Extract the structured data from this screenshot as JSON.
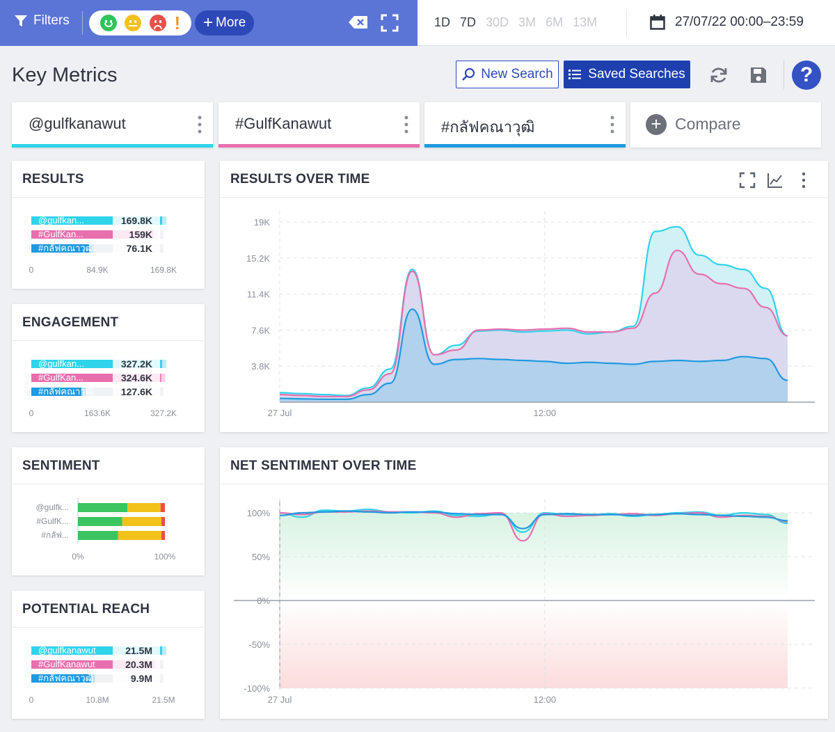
{
  "topbar": {
    "filters_label": "Filters",
    "more_label": "More",
    "excl": "!",
    "ranges": [
      "1D",
      "7D",
      "30D",
      "3M",
      "6M",
      "13M"
    ],
    "ranges_enabled": [
      true,
      true,
      false,
      false,
      false,
      false
    ],
    "date_range": "27/07/22 00:00–23:59"
  },
  "header": {
    "title": "Key Metrics",
    "new_search": "New Search",
    "saved_searches": "Saved Searches",
    "help": "?"
  },
  "queries": [
    {
      "label": "@gulfkanawut",
      "color": "#2fd3ea"
    },
    {
      "label": "#GulfKanawut",
      "color": "#e86fae"
    },
    {
      "label": "#กลัฟคณาวุฒิ",
      "color": "#1f9ae0"
    }
  ],
  "compare_label": "Compare",
  "cards": {
    "results": "RESULTS",
    "engagement": "ENGAGEMENT",
    "sentiment": "SENTIMENT",
    "reach": "POTENTIAL REACH",
    "results_over_time": "RESULTS OVER TIME",
    "net_sentiment": "NET SENTIMENT OVER TIME"
  },
  "colors": {
    "sentiment_positive": "#3bc45f",
    "sentiment_neutral": "#f2c21a",
    "sentiment_negative": "#e8504a",
    "accent": "#1e3fae"
  },
  "chart_data": [
    {
      "id": "results",
      "type": "bar",
      "orientation": "horizontal",
      "categories": [
        "@gulfkan...",
        "#GulfKan...",
        "#กลัฟคณาวุฒิ"
      ],
      "values": [
        169.8,
        159,
        76.1
      ],
      "value_labels": [
        "169.8K",
        "159K",
        "76.1K"
      ],
      "xlim": [
        0,
        169.8
      ],
      "xticks": [
        "0",
        "84.9K",
        "169.8K"
      ]
    },
    {
      "id": "engagement",
      "type": "bar",
      "orientation": "horizontal",
      "categories": [
        "@gulfkan...",
        "#GulfKan...",
        "#กลัฟคณาวุฒิ"
      ],
      "values": [
        327.2,
        324.6,
        127.6
      ],
      "value_labels": [
        "327.2K",
        "324.6K",
        "127.6K"
      ],
      "xlim": [
        0,
        327.2
      ],
      "xticks": [
        "0",
        "163.6K",
        "327.2K"
      ]
    },
    {
      "id": "sentiment",
      "type": "bar",
      "orientation": "horizontal",
      "stacked": true,
      "categories": [
        "@gulfk...",
        "#GulfK...",
        "#กลัฟ..."
      ],
      "series": [
        {
          "values": [
            57,
            51,
            46
          ]
        },
        {
          "values": [
            38,
            45,
            50
          ]
        },
        {
          "values": [
            5,
            4,
            4
          ]
        }
      ],
      "xticks": [
        "0%",
        "100%"
      ]
    },
    {
      "id": "reach",
      "type": "bar",
      "orientation": "horizontal",
      "categories": [
        "@gulfkanawut",
        "#GulfKanawut",
        "#กลัฟคณาวุฒิ"
      ],
      "values": [
        21.5,
        20.3,
        9.9
      ],
      "value_labels": [
        "21.5M",
        "20.3M",
        "9.9M"
      ],
      "xlim": [
        0,
        21.5
      ],
      "xticks": [
        "0",
        "10.8M",
        "21.5M"
      ]
    },
    {
      "id": "results_over_time",
      "type": "area",
      "x": [
        0,
        1,
        2,
        3,
        4,
        5,
        6,
        7,
        8,
        9,
        10,
        11,
        12,
        13,
        14,
        15,
        16,
        17,
        18,
        19,
        20,
        21,
        22,
        23
      ],
      "xticks": [
        {
          "at": 0,
          "label": "27 Jul"
        },
        {
          "at": 12,
          "label": "12:00"
        }
      ],
      "yticks": [
        "3.8K",
        "7.6K",
        "11.4K",
        "15.2K",
        "19K"
      ],
      "ylim": [
        0,
        19000
      ],
      "series": [
        {
          "values": [
            1000,
            900,
            800,
            700,
            1500,
            3500,
            14000,
            5000,
            6000,
            7500,
            7600,
            7400,
            7500,
            7600,
            7200,
            7400,
            8000,
            18000,
            18500,
            15500,
            14500,
            14000,
            12000,
            7000
          ]
        },
        {
          "values": [
            800,
            700,
            600,
            600,
            1300,
            3000,
            13800,
            5000,
            5500,
            7600,
            7700,
            7600,
            7700,
            7800,
            7400,
            7400,
            7800,
            11500,
            16000,
            13500,
            12500,
            12000,
            10000,
            7000
          ]
        },
        {
          "values": [
            400,
            350,
            300,
            300,
            800,
            2000,
            9800,
            4000,
            4500,
            4600,
            4500,
            4400,
            4300,
            4100,
            4200,
            4100,
            4000,
            4300,
            4400,
            4300,
            4400,
            4800,
            4600,
            2300
          ]
        }
      ]
    },
    {
      "id": "net_sentiment",
      "type": "line",
      "x": [
        0,
        1,
        2,
        3,
        4,
        5,
        6,
        7,
        8,
        9,
        10,
        11,
        12,
        13,
        14,
        15,
        16,
        17,
        18,
        19,
        20,
        21,
        22,
        23
      ],
      "xticks": [
        {
          "at": 0,
          "label": "27 Jul"
        },
        {
          "at": 12,
          "label": "12:00"
        }
      ],
      "yticks": [
        "-100%",
        "-50%",
        "0%",
        "50%",
        "100%"
      ],
      "ylim": [
        -100,
        110
      ],
      "series": [
        {
          "values": [
            100,
            95,
            103,
            102,
            104,
            101,
            100,
            102,
            97,
            96,
            99,
            78,
            100,
            98,
            97,
            99,
            96,
            98,
            100,
            101,
            97,
            100,
            98,
            88
          ]
        },
        {
          "values": [
            100,
            98,
            101,
            101,
            102,
            101,
            101,
            100,
            95,
            99,
            100,
            68,
            99,
            96,
            97,
            98,
            99,
            97,
            99,
            100,
            95,
            97,
            96,
            90
          ]
        },
        {
          "values": [
            97,
            100,
            101,
            102,
            101,
            100,
            101,
            101,
            99,
            98,
            98,
            82,
            98,
            99,
            98,
            98,
            97,
            98,
            99,
            98,
            97,
            96,
            95,
            91
          ]
        }
      ]
    }
  ]
}
